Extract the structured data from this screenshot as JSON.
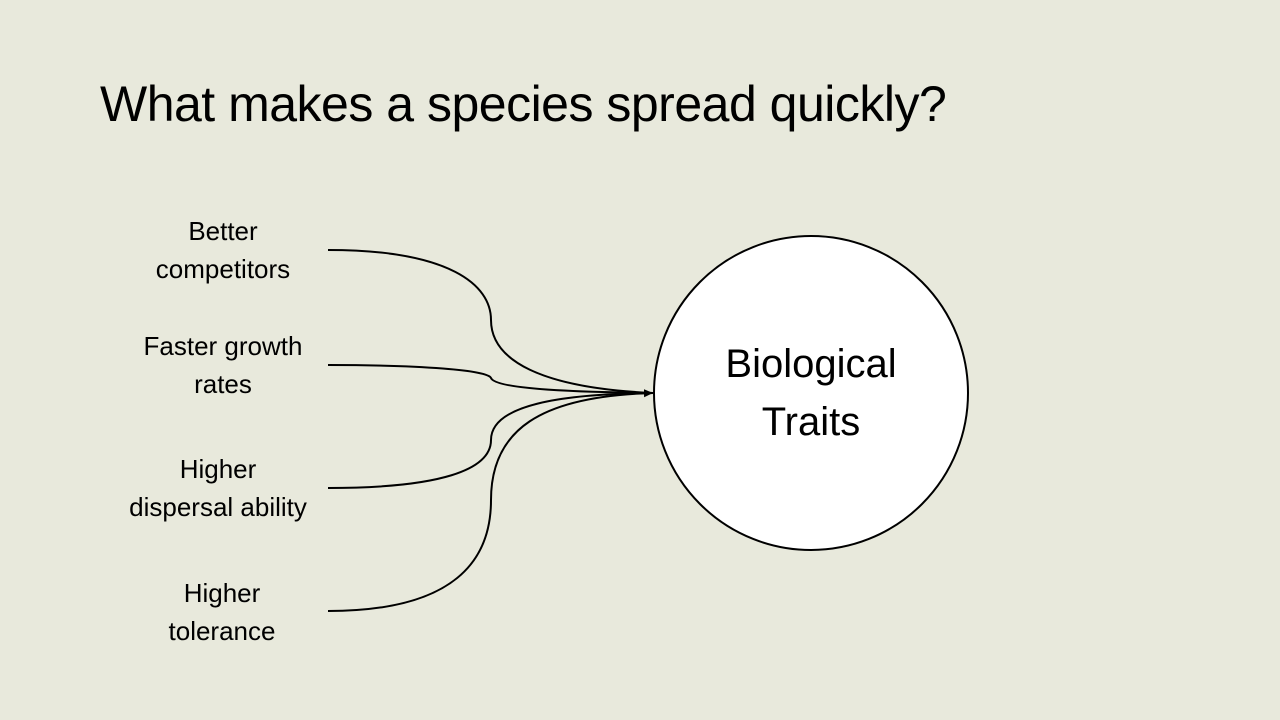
{
  "slide": {
    "title": "What makes a species spread quickly?",
    "center": {
      "line1": "Biological",
      "line2": "Traits"
    },
    "traits": [
      {
        "line1": "Better",
        "line2": "competitors"
      },
      {
        "line1": "Faster growth",
        "line2": "rates"
      },
      {
        "line1": "Higher",
        "line2": "dispersal ability"
      },
      {
        "line1": "Higher",
        "line2": "tolerance"
      }
    ]
  },
  "colors": {
    "background": "#e8e9dc",
    "circle_fill": "#ffffff",
    "stroke": "#000000"
  }
}
